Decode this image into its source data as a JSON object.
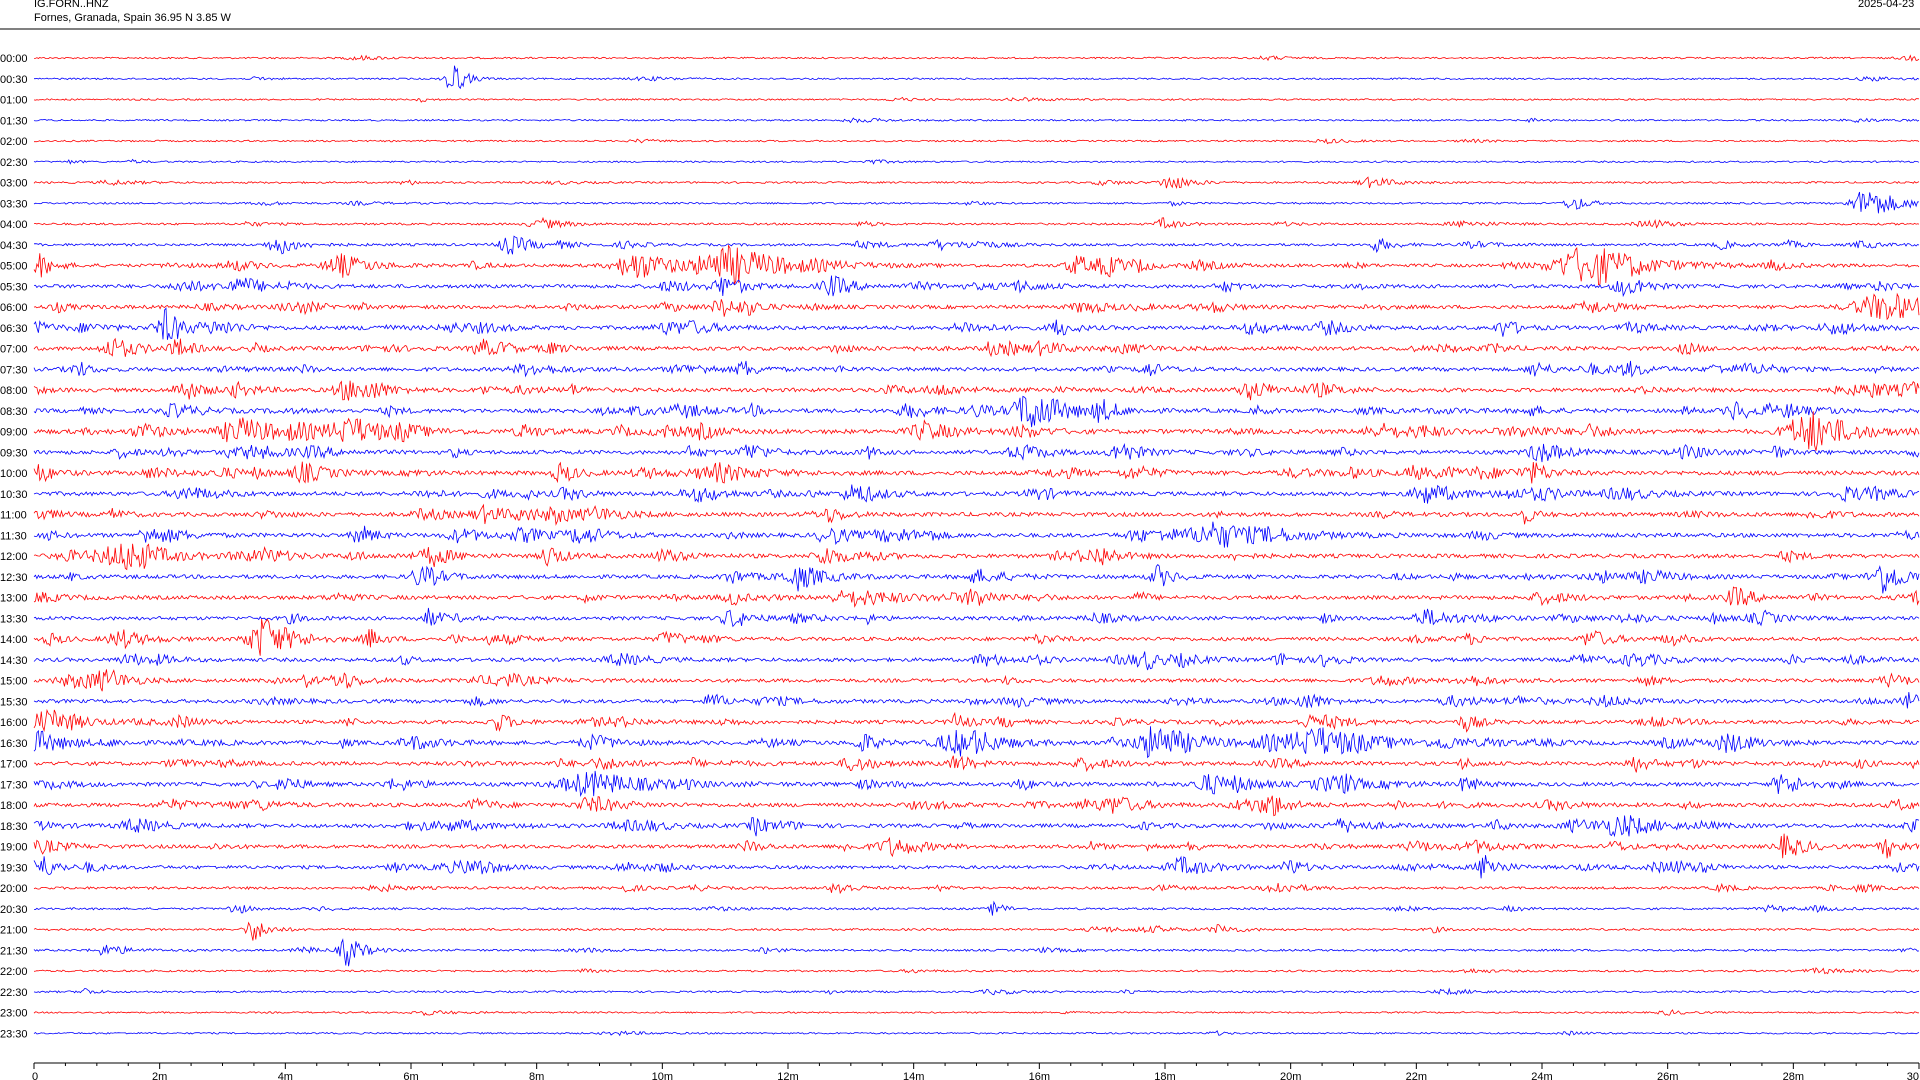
{
  "header": {
    "station": "IG.FORN..HNZ",
    "location": "Fornes, Granada, Spain  36.95 N 3.85 W",
    "date": "2025-04-23"
  },
  "colors": {
    "trace_a": "#ff0000",
    "trace_b": "#0000ff",
    "axis": "#000000",
    "background": "#ffffff"
  },
  "chart_data": {
    "type": "helicorder",
    "row_interval_minutes": 30,
    "row_labels": [
      "00:00",
      "00:30",
      "01:00",
      "01:30",
      "02:00",
      "02:30",
      "03:00",
      "03:30",
      "04:00",
      "04:30",
      "05:00",
      "05:30",
      "06:00",
      "06:30",
      "07:00",
      "07:30",
      "08:00",
      "08:30",
      "09:00",
      "09:30",
      "10:00",
      "10:30",
      "11:00",
      "11:30",
      "12:00",
      "12:30",
      "13:00",
      "13:30",
      "14:00",
      "14:30",
      "15:00",
      "15:30",
      "16:00",
      "16:30",
      "17:00",
      "17:30",
      "18:00",
      "18:30",
      "19:00",
      "19:30",
      "20:00",
      "20:30",
      "21:00",
      "21:30",
      "22:00",
      "22:30",
      "23:00",
      "23:30"
    ],
    "row_colors": [
      "red",
      "blue",
      "red",
      "blue",
      "red",
      "blue",
      "red",
      "blue",
      "red",
      "blue",
      "red",
      "blue",
      "red",
      "blue",
      "red",
      "blue",
      "red",
      "blue",
      "red",
      "blue",
      "red",
      "blue",
      "red",
      "blue",
      "red",
      "blue",
      "red",
      "blue",
      "red",
      "blue",
      "red",
      "blue",
      "red",
      "blue",
      "red",
      "blue",
      "red",
      "blue",
      "red",
      "blue",
      "red",
      "blue",
      "red",
      "blue",
      "red",
      "blue",
      "red",
      "blue"
    ],
    "activity": [
      0.2,
      0.2,
      0.2,
      0.2,
      0.2,
      0.2,
      0.3,
      0.3,
      0.4,
      0.6,
      0.9,
      1.1,
      1.1,
      1.2,
      1.2,
      1.2,
      1.2,
      1.3,
      1.5,
      1.3,
      1.4,
      1.3,
      1.3,
      1.3,
      1.3,
      1.2,
      1.2,
      1.1,
      1.1,
      1.1,
      1.1,
      1.1,
      1.1,
      1.2,
      1.2,
      1.2,
      1.2,
      1.2,
      1.1,
      1.0,
      0.6,
      0.4,
      0.4,
      0.4,
      0.3,
      0.3,
      0.2,
      0.2
    ],
    "events": [
      {
        "row": 1,
        "minute": 6.65,
        "amp": 20,
        "dur": 0.25
      },
      {
        "row": 6,
        "minute": 18.1,
        "amp": 8,
        "dur": 0.4
      },
      {
        "row": 6,
        "minute": 21.3,
        "amp": 5,
        "dur": 0.5
      },
      {
        "row": 7,
        "minute": 24.5,
        "amp": 8,
        "dur": 0.3
      },
      {
        "row": 7,
        "minute": 29.2,
        "amp": 16,
        "dur": 0.6
      },
      {
        "row": 8,
        "minute": 8.1,
        "amp": 5,
        "dur": 0.5
      },
      {
        "row": 8,
        "minute": 18.0,
        "amp": 6,
        "dur": 0.3
      },
      {
        "row": 9,
        "minute": 3.9,
        "amp": 10,
        "dur": 0.4
      },
      {
        "row": 9,
        "minute": 7.6,
        "amp": 9,
        "dur": 0.5
      },
      {
        "row": 9,
        "minute": 14.4,
        "amp": 5,
        "dur": 0.3
      },
      {
        "row": 9,
        "minute": 21.4,
        "amp": 7,
        "dur": 0.3
      },
      {
        "row": 10,
        "minute": 0.1,
        "amp": 10,
        "dur": 0.3
      },
      {
        "row": 10,
        "minute": 4.9,
        "amp": 11,
        "dur": 0.6
      },
      {
        "row": 10,
        "minute": 9.6,
        "amp": 14,
        "dur": 0.8
      },
      {
        "row": 10,
        "minute": 11.1,
        "amp": 18,
        "dur": 1.2
      },
      {
        "row": 10,
        "minute": 16.6,
        "amp": 10,
        "dur": 0.4
      },
      {
        "row": 10,
        "minute": 17.1,
        "amp": 9,
        "dur": 0.4
      },
      {
        "row": 10,
        "minute": 24.7,
        "amp": 18,
        "dur": 1.2
      },
      {
        "row": 11,
        "minute": 11.0,
        "amp": 10,
        "dur": 0.4
      },
      {
        "row": 11,
        "minute": 12.7,
        "amp": 9,
        "dur": 0.4
      },
      {
        "row": 11,
        "minute": 25.3,
        "amp": 8,
        "dur": 0.4
      },
      {
        "row": 12,
        "minute": 11.0,
        "amp": 9,
        "dur": 0.5
      },
      {
        "row": 12,
        "minute": 29.5,
        "amp": 14,
        "dur": 1.2
      },
      {
        "row": 13,
        "minute": 2.1,
        "amp": 9,
        "dur": 0.4
      },
      {
        "row": 13,
        "minute": 16.3,
        "amp": 9,
        "dur": 0.3
      },
      {
        "row": 13,
        "minute": 23.4,
        "amp": 9,
        "dur": 0.3
      },
      {
        "row": 14,
        "minute": 1.3,
        "amp": 10,
        "dur": 0.5
      },
      {
        "row": 14,
        "minute": 2.3,
        "amp": 9,
        "dur": 0.3
      },
      {
        "row": 15,
        "minute": 11.3,
        "amp": 8,
        "dur": 0.3
      },
      {
        "row": 15,
        "minute": 23.9,
        "amp": 8,
        "dur": 0.3
      },
      {
        "row": 16,
        "minute": 2.4,
        "amp": 10,
        "dur": 0.4
      },
      {
        "row": 16,
        "minute": 5.0,
        "amp": 10,
        "dur": 0.5
      },
      {
        "row": 16,
        "minute": 19.4,
        "amp": 9,
        "dur": 0.5
      },
      {
        "row": 17,
        "minute": 15.9,
        "amp": 20,
        "dur": 0.7
      },
      {
        "row": 17,
        "minute": 17.0,
        "amp": 10,
        "dur": 0.3
      },
      {
        "row": 17,
        "minute": 27.1,
        "amp": 9,
        "dur": 0.4
      },
      {
        "row": 18,
        "minute": 3.4,
        "amp": 10,
        "dur": 1.0
      },
      {
        "row": 18,
        "minute": 5.1,
        "amp": 12,
        "dur": 0.8
      },
      {
        "row": 18,
        "minute": 14.2,
        "amp": 9,
        "dur": 0.6
      },
      {
        "row": 18,
        "minute": 28.4,
        "amp": 14,
        "dur": 0.8
      },
      {
        "row": 19,
        "minute": 11.4,
        "amp": 9,
        "dur": 0.4
      },
      {
        "row": 19,
        "minute": 17.3,
        "amp": 11,
        "dur": 0.4
      },
      {
        "row": 19,
        "minute": 24.0,
        "amp": 10,
        "dur": 0.5
      },
      {
        "row": 20,
        "minute": 0.1,
        "amp": 9,
        "dur": 0.3
      },
      {
        "row": 20,
        "minute": 8.4,
        "amp": 10,
        "dur": 0.3
      },
      {
        "row": 20,
        "minute": 10.9,
        "amp": 9,
        "dur": 0.8
      },
      {
        "row": 21,
        "minute": 13.1,
        "amp": 10,
        "dur": 0.5
      },
      {
        "row": 21,
        "minute": 22.2,
        "amp": 10,
        "dur": 0.6
      },
      {
        "row": 23,
        "minute": 1.8,
        "amp": 9,
        "dur": 0.3
      },
      {
        "row": 23,
        "minute": 5.2,
        "amp": 10,
        "dur": 0.3
      },
      {
        "row": 23,
        "minute": 18.9,
        "amp": 11,
        "dur": 1.2
      },
      {
        "row": 24,
        "minute": 1.3,
        "amp": 8,
        "dur": 0.8
      },
      {
        "row": 24,
        "minute": 8.2,
        "amp": 11,
        "dur": 0.3
      },
      {
        "row": 24,
        "minute": 12.6,
        "amp": 10,
        "dur": 0.4
      },
      {
        "row": 25,
        "minute": 17.9,
        "amp": 11,
        "dur": 0.3
      },
      {
        "row": 25,
        "minute": 29.4,
        "amp": 9,
        "dur": 0.5
      },
      {
        "row": 26,
        "minute": 13.1,
        "amp": 8,
        "dur": 1.0
      },
      {
        "row": 26,
        "minute": 15.0,
        "amp": 8,
        "dur": 0.4
      },
      {
        "row": 27,
        "minute": 6.3,
        "amp": 9,
        "dur": 0.3
      },
      {
        "row": 27,
        "minute": 22.2,
        "amp": 8,
        "dur": 0.6
      },
      {
        "row": 28,
        "minute": 1.4,
        "amp": 9,
        "dur": 0.5
      },
      {
        "row": 28,
        "minute": 3.7,
        "amp": 18,
        "dur": 0.4
      },
      {
        "row": 28,
        "minute": 10.1,
        "amp": 7,
        "dur": 0.4
      },
      {
        "row": 28,
        "minute": 24.8,
        "amp": 9,
        "dur": 0.4
      },
      {
        "row": 29,
        "minute": 17.7,
        "amp": 8,
        "dur": 0.3
      },
      {
        "row": 29,
        "minute": 20.6,
        "amp": 8,
        "dur": 0.3
      },
      {
        "row": 30,
        "minute": 1.2,
        "amp": 9,
        "dur": 0.4
      },
      {
        "row": 30,
        "minute": 4.9,
        "amp": 9,
        "dur": 0.4
      },
      {
        "row": 31,
        "minute": 10.8,
        "amp": 8,
        "dur": 0.3
      },
      {
        "row": 31,
        "minute": 29.8,
        "amp": 9,
        "dur": 0.3
      },
      {
        "row": 32,
        "minute": 0.2,
        "amp": 11,
        "dur": 0.6
      },
      {
        "row": 32,
        "minute": 7.4,
        "amp": 9,
        "dur": 0.3
      },
      {
        "row": 32,
        "minute": 14.7,
        "amp": 8,
        "dur": 0.3
      },
      {
        "row": 32,
        "minute": 22.8,
        "amp": 8,
        "dur": 0.3
      },
      {
        "row": 33,
        "minute": 0.1,
        "amp": 11,
        "dur": 0.6
      },
      {
        "row": 33,
        "minute": 13.2,
        "amp": 10,
        "dur": 0.3
      },
      {
        "row": 33,
        "minute": 14.7,
        "amp": 11,
        "dur": 0.8
      },
      {
        "row": 33,
        "minute": 17.9,
        "amp": 18,
        "dur": 0.8
      },
      {
        "row": 33,
        "minute": 20.5,
        "amp": 14,
        "dur": 1.2
      },
      {
        "row": 33,
        "minute": 27.0,
        "amp": 9,
        "dur": 0.6
      },
      {
        "row": 34,
        "minute": 14.7,
        "amp": 9,
        "dur": 0.3
      },
      {
        "row": 34,
        "minute": 25.5,
        "amp": 7,
        "dur": 0.4
      },
      {
        "row": 35,
        "minute": 4.0,
        "amp": 9,
        "dur": 0.3
      },
      {
        "row": 35,
        "minute": 8.9,
        "amp": 12,
        "dur": 1.2
      },
      {
        "row": 35,
        "minute": 18.7,
        "amp": 10,
        "dur": 0.5
      },
      {
        "row": 35,
        "minute": 27.8,
        "amp": 9,
        "dur": 0.3
      },
      {
        "row": 36,
        "minute": 8.9,
        "amp": 8,
        "dur": 0.6
      },
      {
        "row": 36,
        "minute": 19.7,
        "amp": 9,
        "dur": 0.3
      },
      {
        "row": 37,
        "minute": 11.5,
        "amp": 9,
        "dur": 0.3
      },
      {
        "row": 37,
        "minute": 25.3,
        "amp": 10,
        "dur": 0.8
      },
      {
        "row": 38,
        "minute": 13.7,
        "amp": 9,
        "dur": 0.6
      },
      {
        "row": 38,
        "minute": 27.9,
        "amp": 12,
        "dur": 0.4
      },
      {
        "row": 38,
        "minute": 29.5,
        "amp": 10,
        "dur": 0.3
      },
      {
        "row": 39,
        "minute": 0.1,
        "amp": 14,
        "dur": 0.3
      },
      {
        "row": 39,
        "minute": 18.3,
        "amp": 9,
        "dur": 0.6
      },
      {
        "row": 39,
        "minute": 20.0,
        "amp": 8,
        "dur": 0.3
      },
      {
        "row": 39,
        "minute": 23.1,
        "amp": 14,
        "dur": 0.3
      },
      {
        "row": 40,
        "minute": 12.8,
        "amp": 8,
        "dur": 0.3
      },
      {
        "row": 40,
        "minute": 19.8,
        "amp": 6,
        "dur": 0.5
      },
      {
        "row": 41,
        "minute": 3.2,
        "amp": 8,
        "dur": 0.2
      },
      {
        "row": 41,
        "minute": 15.3,
        "amp": 8,
        "dur": 0.2
      },
      {
        "row": 42,
        "minute": 3.5,
        "amp": 12,
        "dur": 0.3
      },
      {
        "row": 43,
        "minute": 5.0,
        "amp": 16,
        "dur": 0.3
      },
      {
        "row": 43,
        "minute": 4.3,
        "amp": 3,
        "dur": 0.4
      },
      {
        "row": 45,
        "minute": 0.8,
        "amp": 4,
        "dur": 0.2
      }
    ],
    "x_ticks": [
      "0",
      "2m",
      "4m",
      "6m",
      "8m",
      "10m",
      "12m",
      "14m",
      "16m",
      "18m",
      "20m",
      "22m",
      "24m",
      "26m",
      "28m",
      "30"
    ],
    "x_range_minutes": [
      0,
      30
    ]
  }
}
